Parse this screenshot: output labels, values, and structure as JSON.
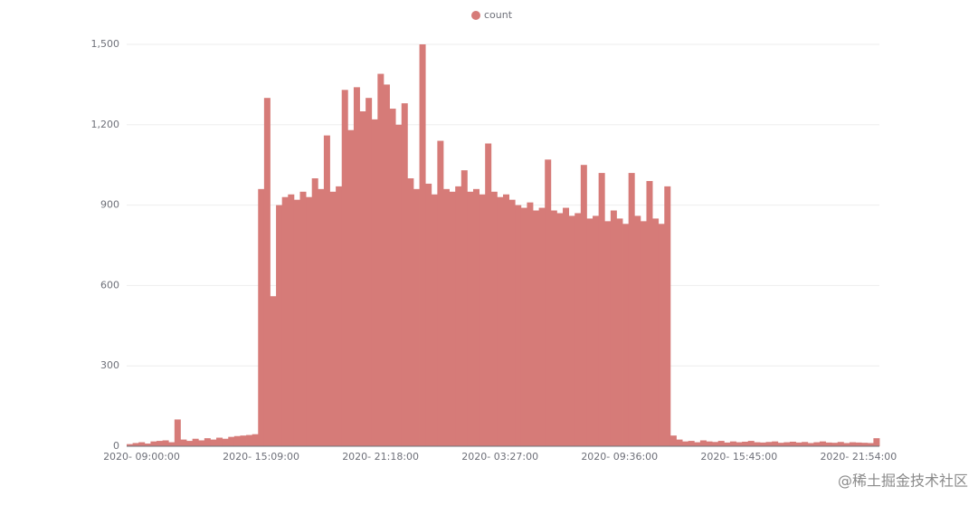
{
  "chart_data": {
    "type": "bar",
    "legend": "count",
    "color": "#d67b78",
    "ylim": [
      0,
      1500
    ],
    "yticks": [
      0,
      300,
      600,
      900,
      {
        "value": 1200,
        "label": "1,200"
      },
      {
        "value": 1500,
        "label": "1,500"
      }
    ],
    "grid": true,
    "categories": [
      null,
      null,
      "2020-     09:00:00",
      null,
      null,
      null,
      null,
      null,
      null,
      null,
      null,
      null,
      null,
      null,
      null,
      null,
      null,
      null,
      null,
      null,
      null,
      null,
      "2020-     15:09:00",
      null,
      null,
      null,
      null,
      null,
      null,
      null,
      null,
      null,
      null,
      null,
      null,
      null,
      null,
      null,
      null,
      null,
      null,
      null,
      "2020-     21:18:00",
      null,
      null,
      null,
      null,
      null,
      null,
      null,
      null,
      null,
      null,
      null,
      null,
      null,
      null,
      null,
      null,
      null,
      null,
      null,
      "2020-     03:27:00",
      null,
      null,
      null,
      null,
      null,
      null,
      null,
      null,
      null,
      null,
      null,
      null,
      null,
      null,
      null,
      null,
      null,
      null,
      null,
      "2020-     09:36:00",
      null,
      null,
      null,
      null,
      null,
      null,
      null,
      null,
      null,
      null,
      null,
      null,
      null,
      null,
      null,
      null,
      null,
      null,
      null,
      "2020-     15:45:00",
      null,
      null,
      null,
      null,
      null,
      null,
      null,
      null,
      null,
      null,
      null,
      null,
      null,
      null,
      null,
      null,
      null,
      null,
      null,
      "2020-     21:54:00",
      null,
      null,
      null
    ],
    "values": [
      8,
      12,
      15,
      10,
      18,
      20,
      22,
      15,
      100,
      25,
      20,
      28,
      22,
      30,
      25,
      32,
      28,
      35,
      38,
      40,
      42,
      45,
      960,
      1300,
      560,
      900,
      930,
      940,
      920,
      950,
      930,
      1000,
      960,
      1160,
      950,
      970,
      1330,
      1180,
      1340,
      1250,
      1300,
      1220,
      1390,
      1350,
      1260,
      1200,
      1280,
      1000,
      960,
      1500,
      980,
      940,
      1140,
      960,
      950,
      970,
      1030,
      950,
      960,
      940,
      1130,
      950,
      930,
      940,
      920,
      900,
      890,
      910,
      880,
      890,
      1070,
      880,
      870,
      890,
      860,
      870,
      1050,
      850,
      860,
      1020,
      840,
      880,
      850,
      830,
      1020,
      860,
      840,
      990,
      850,
      830,
      970,
      40,
      25,
      18,
      20,
      15,
      22,
      18,
      16,
      20,
      14,
      18,
      15,
      17,
      20,
      15,
      14,
      16,
      18,
      13,
      15,
      17,
      14,
      16,
      12,
      15,
      18,
      14,
      13,
      16,
      12,
      15,
      14,
      13,
      12,
      30
    ]
  },
  "watermark": "@稀土掘金技术社区"
}
